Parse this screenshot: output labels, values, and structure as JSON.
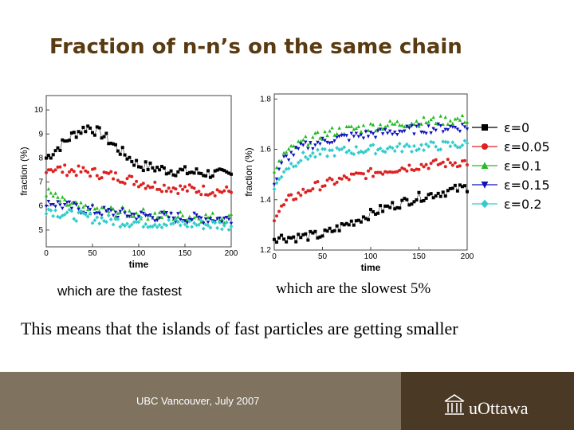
{
  "slide": {
    "title": "Fraction of n-n’s on the same chain",
    "caption_left": "which are the fastest",
    "caption_right": "which are the slowest 5%",
    "summary": "This means that the islands of fast particles are getting smaller",
    "footer_text": "UBC Vancouver, July 2007",
    "logo_text": "uOttawa",
    "logo_icon": "university-building-icon",
    "colors": {
      "title": "#5a3a10",
      "footer_left": "#7f7360",
      "footer_right": "#4a3924"
    }
  },
  "chart_data": [
    {
      "type": "scatter",
      "xlabel": "time",
      "ylabel": "fraction (%)",
      "xlim": [
        0,
        200
      ],
      "ylim": [
        4.3,
        10.6
      ],
      "x_ticks": [
        0,
        50,
        100,
        150,
        200
      ],
      "y_ticks": [
        5,
        6,
        7,
        8,
        9,
        10
      ],
      "series": [
        {
          "color": "#000000",
          "marker": "square",
          "curve": [
            [
              0,
              8.0
            ],
            [
              15,
              8.5
            ],
            [
              30,
              9.0
            ],
            [
              45,
              9.3
            ],
            [
              60,
              9.0
            ],
            [
              80,
              8.3
            ],
            [
              100,
              7.7
            ],
            [
              130,
              7.5
            ],
            [
              160,
              7.4
            ],
            [
              200,
              7.3
            ]
          ]
        },
        {
          "color": "#dd2222",
          "marker": "circle",
          "curve": [
            [
              0,
              7.6
            ],
            [
              20,
              7.5
            ],
            [
              50,
              7.4
            ],
            [
              80,
              7.2
            ],
            [
              110,
              6.9
            ],
            [
              150,
              6.7
            ],
            [
              200,
              6.6
            ]
          ]
        },
        {
          "color": "#22bb22",
          "marker": "triangle-up",
          "curve": [
            [
              0,
              6.6
            ],
            [
              20,
              6.1
            ],
            [
              40,
              5.9
            ],
            [
              80,
              5.75
            ],
            [
              130,
              5.6
            ],
            [
              200,
              5.5
            ]
          ]
        },
        {
          "color": "#1111bb",
          "marker": "triangle-down",
          "curve": [
            [
              0,
              6.2
            ],
            [
              20,
              6.0
            ],
            [
              50,
              5.8
            ],
            [
              100,
              5.6
            ],
            [
              150,
              5.5
            ],
            [
              200,
              5.45
            ]
          ]
        },
        {
          "color": "#33cccc",
          "marker": "diamond",
          "curve": [
            [
              0,
              5.9
            ],
            [
              15,
              5.7
            ],
            [
              40,
              5.55
            ],
            [
              80,
              5.35
            ],
            [
              150,
              5.25
            ],
            [
              200,
              5.2
            ]
          ]
        }
      ]
    },
    {
      "type": "scatter",
      "xlabel": "time",
      "ylabel": "fraction (%)",
      "xlim": [
        0,
        200
      ],
      "ylim": [
        1.2,
        1.82
      ],
      "x_ticks": [
        0,
        50,
        100,
        150,
        200
      ],
      "y_ticks": [
        1.2,
        1.4,
        1.6,
        1.8
      ],
      "legend_position": "right",
      "series": [
        {
          "name": "ε=0",
          "color": "#000000",
          "marker": "square",
          "curve": [
            [
              0,
              1.25
            ],
            [
              20,
              1.25
            ],
            [
              50,
              1.26
            ],
            [
              80,
              1.31
            ],
            [
              110,
              1.36
            ],
            [
              150,
              1.41
            ],
            [
              200,
              1.45
            ]
          ]
        },
        {
          "name": "ε=0.05",
          "color": "#dd2222",
          "marker": "circle",
          "curve": [
            [
              0,
              1.33
            ],
            [
              15,
              1.4
            ],
            [
              40,
              1.45
            ],
            [
              80,
              1.49
            ],
            [
              120,
              1.52
            ],
            [
              160,
              1.54
            ],
            [
              200,
              1.55
            ]
          ]
        },
        {
          "name": "ε=0.1",
          "color": "#22bb22",
          "marker": "triangle-up",
          "curve": [
            [
              0,
              1.5
            ],
            [
              10,
              1.58
            ],
            [
              30,
              1.63
            ],
            [
              60,
              1.67
            ],
            [
              100,
              1.69
            ],
            [
              150,
              1.71
            ],
            [
              200,
              1.72
            ]
          ]
        },
        {
          "name": "ε=0.15",
          "color": "#1111bb",
          "marker": "triangle-down",
          "curve": [
            [
              0,
              1.46
            ],
            [
              10,
              1.56
            ],
            [
              30,
              1.61
            ],
            [
              60,
              1.64
            ],
            [
              100,
              1.66
            ],
            [
              150,
              1.68
            ],
            [
              200,
              1.69
            ]
          ]
        },
        {
          "name": "ε=0.2",
          "color": "#33cccc",
          "marker": "diamond",
          "curve": [
            [
              0,
              1.44
            ],
            [
              10,
              1.52
            ],
            [
              30,
              1.57
            ],
            [
              60,
              1.59
            ],
            [
              100,
              1.6
            ],
            [
              150,
              1.61
            ],
            [
              200,
              1.62
            ]
          ]
        }
      ]
    }
  ]
}
